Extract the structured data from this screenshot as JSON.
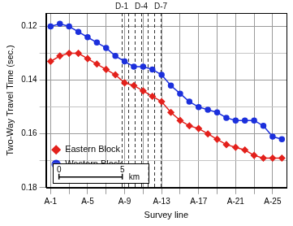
{
  "chart_data": {
    "type": "line",
    "x_label": "Survey line",
    "y_label": "Two-Way Travel Time (sec.)",
    "categories": [
      "A-1",
      null,
      null,
      null,
      "A-5",
      null,
      null,
      null,
      "A-9",
      null,
      null,
      null,
      "A-13",
      null,
      null,
      null,
      "A-17",
      null,
      null,
      null,
      "A-21",
      null,
      null,
      null,
      "A-25",
      null
    ],
    "series": [
      {
        "name": "Eastern Block",
        "color": "#e3211c",
        "marker": "diamond",
        "values": [
          0.133,
          0.131,
          0.13,
          0.13,
          0.132,
          0.134,
          0.136,
          0.138,
          0.141,
          0.142,
          0.144,
          0.146,
          0.148,
          0.152,
          0.155,
          0.157,
          0.158,
          0.16,
          0.162,
          0.164,
          0.165,
          0.166,
          0.168,
          0.169,
          0.169,
          0.169
        ]
      },
      {
        "name": "Western Block",
        "color": "#1c30dc",
        "marker": "circle",
        "values": [
          0.12,
          0.119,
          0.12,
          0.122,
          0.124,
          0.126,
          0.128,
          0.131,
          0.133,
          0.135,
          0.135,
          0.136,
          0.138,
          0.142,
          0.145,
          0.148,
          0.15,
          0.151,
          0.152,
          0.154,
          0.155,
          0.155,
          0.155,
          0.157,
          0.161,
          0.162
        ]
      }
    ],
    "ylim": [
      0.18,
      0.115
    ],
    "yticks": [
      0.12,
      0.14,
      0.16,
      0.18
    ],
    "grid": true,
    "legend": "top right",
    "annotations": {
      "vertical_lines": [
        {
          "x": 7.7,
          "label": "D-1"
        },
        {
          "x": 8.4
        },
        {
          "x": 9.1
        },
        {
          "x": 9.8,
          "label": "D-4"
        },
        {
          "x": 10.5
        },
        {
          "x": 11.2
        },
        {
          "x": 11.9,
          "label": "D-7"
        }
      ],
      "scale_bar": {
        "from": 0,
        "to": 5,
        "unit": "km"
      }
    }
  }
}
